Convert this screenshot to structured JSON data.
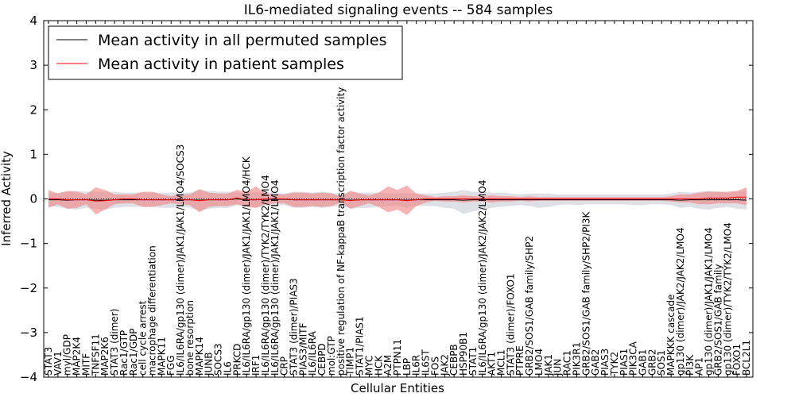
{
  "chart_data": {
    "type": "line",
    "title": "IL6-mediated signaling events -- 584 samples",
    "xlabel": "Cellular Entities",
    "ylabel": "Inferred Activity",
    "ylim": [
      -4,
      4
    ],
    "yticks": [
      -4,
      -3,
      -2,
      -1,
      0,
      1,
      2,
      3,
      4
    ],
    "ytick_labels": [
      "−4",
      "−3",
      "−2",
      "−1",
      "0",
      "1",
      "2",
      "3",
      "4"
    ],
    "categories": [
      "STAT3",
      "VAV1",
      "myl/GDP",
      "MAP2K4",
      "MITF",
      "TNFSF11",
      "MAP2K6",
      "STAT3 (dimer)",
      "Rac1/GTP",
      "Rac1/GDP",
      "cell cycle arrest",
      "macrophage differentiation",
      "MAPK11",
      "FGG",
      "IL6/IL6RA/gp130 (dimer)/JAK1/JAK1/LMO4/SOCS3",
      "bone resorption",
      "MAPK14",
      "JUNB",
      "SOCS3",
      "IL6",
      "PRKCD",
      "IL6/IL6RA/gp130 (dimer)/JAK1/JAK1/LMO4/HCK",
      "IRF1",
      "IL6/IL6RA/gp130 (dimer)/TYK2/TYK2/LMO4",
      "IL6/IL6RA/gp130 (dimer)/JAK1/JAK1/LMO4",
      "CRP",
      "STAT3 (dimer)/PIAS3",
      "PIAS3/MITF",
      "IL6/IL6RA",
      "CEBPD",
      "mol:GTP",
      "positive regulation of NF-kappaB transcription factor activity",
      "TIMP1",
      "STAT1/PIAS1",
      "MYC",
      "HCK",
      "A2M",
      "PTPN11",
      "LBP",
      "IL6R",
      "IL6ST",
      "FOS",
      "JAK2",
      "CEBPB",
      "HSP90B1",
      "STAT1",
      "IL6/IL6RA/gp130 (dimer)/JAK2/JAK2/LMO4",
      "AKT1",
      "MCL1",
      "STAT3 (dimer)/FOXO1",
      "PTPRE",
      "GRB2/SOS1/GAB family/SHP2",
      "LMO4",
      "JAK1",
      "JUN",
      "RAC1",
      "PIK3R1",
      "GRB2/SOS1/GAB family/SHP2/PI3K",
      "GAB2",
      "PIAS3",
      "TYK2",
      "PIAS1",
      "PIK3CA",
      "GAB1",
      "GRB2",
      "SOS1",
      "MAPKKK cascade",
      "gp130 (dimer)/JAK2/JAK2/LMO4",
      "PI3K",
      "AP1",
      "gp130 (dimer)/JAK1/JAK1/LMO4",
      "GRB2/SOS1/GAB family",
      "gp130 (dimer)/TYK2/TYK2/LMO4",
      "FOXO1",
      "BCL2L1"
    ],
    "series": [
      {
        "name": "Mean activity in all permuted samples",
        "color": "#000000",
        "band_color": "#c8cbd6",
        "values": [
          -0.02,
          -0.02,
          -0.03,
          -0.02,
          -0.02,
          -0.03,
          -0.03,
          -0.02,
          -0.02,
          -0.02,
          -0.02,
          -0.02,
          -0.02,
          -0.02,
          -0.02,
          -0.02,
          -0.03,
          -0.02,
          -0.02,
          -0.02,
          0.0,
          -0.02,
          -0.02,
          -0.01,
          -0.01,
          -0.01,
          -0.02,
          -0.02,
          -0.02,
          -0.02,
          -0.02,
          -0.02,
          -0.03,
          -0.02,
          -0.02,
          -0.02,
          -0.02,
          -0.02,
          -0.03,
          -0.02,
          -0.02,
          -0.02,
          -0.02,
          -0.02,
          -0.03,
          -0.02,
          -0.02,
          -0.02,
          -0.02,
          -0.02,
          -0.02,
          -0.02,
          -0.02,
          -0.02,
          -0.02,
          -0.02,
          -0.02,
          -0.02,
          -0.02,
          -0.02,
          -0.02,
          -0.02,
          -0.02,
          -0.02,
          -0.02,
          -0.02,
          -0.02,
          -0.03,
          -0.02,
          -0.02,
          -0.02,
          -0.02,
          -0.02,
          -0.02,
          -0.03
        ],
        "lower": [
          -0.16,
          -0.18,
          -0.22,
          -0.24,
          -0.2,
          -0.22,
          -0.24,
          -0.2,
          -0.18,
          -0.18,
          -0.18,
          -0.18,
          -0.2,
          -0.2,
          -0.18,
          -0.2,
          -0.26,
          -0.22,
          -0.2,
          -0.2,
          -0.14,
          -0.18,
          -0.2,
          -0.16,
          -0.14,
          -0.14,
          -0.2,
          -0.2,
          -0.18,
          -0.2,
          -0.18,
          -0.14,
          -0.22,
          -0.2,
          -0.2,
          -0.18,
          -0.16,
          -0.16,
          -0.2,
          -0.16,
          -0.16,
          -0.16,
          -0.2,
          -0.22,
          -0.34,
          -0.28,
          -0.24,
          -0.2,
          -0.18,
          -0.16,
          -0.14,
          -0.16,
          -0.2,
          -0.18,
          -0.14,
          -0.12,
          -0.14,
          -0.12,
          -0.12,
          -0.12,
          -0.12,
          -0.12,
          -0.14,
          -0.14,
          -0.12,
          -0.12,
          -0.14,
          -0.2,
          -0.18,
          -0.22,
          -0.24,
          -0.2,
          -0.18,
          -0.22,
          -0.24
        ],
        "upper": [
          0.12,
          0.14,
          0.16,
          0.18,
          0.16,
          0.16,
          0.16,
          0.16,
          0.14,
          0.14,
          0.14,
          0.14,
          0.14,
          0.14,
          0.14,
          0.14,
          0.2,
          0.18,
          0.16,
          0.16,
          0.14,
          0.14,
          0.16,
          0.14,
          0.14,
          0.12,
          0.16,
          0.16,
          0.14,
          0.16,
          0.14,
          0.1,
          0.16,
          0.14,
          0.14,
          0.14,
          0.12,
          0.12,
          0.14,
          0.12,
          0.12,
          0.12,
          0.14,
          0.16,
          0.2,
          0.16,
          0.16,
          0.14,
          0.14,
          0.12,
          0.1,
          0.12,
          0.12,
          0.12,
          0.1,
          0.1,
          0.1,
          0.1,
          0.1,
          0.1,
          0.1,
          0.1,
          0.1,
          0.1,
          0.1,
          0.1,
          0.12,
          0.16,
          0.14,
          0.16,
          0.18,
          0.16,
          0.14,
          0.16,
          0.18
        ]
      },
      {
        "name": "Mean activity in patient samples",
        "color": "#ff0000",
        "band_color": "#f08080",
        "values": [
          0.0,
          0.0,
          -0.02,
          -0.02,
          -0.02,
          -0.05,
          -0.04,
          -0.02,
          0.0,
          0.0,
          -0.02,
          -0.02,
          -0.02,
          -0.02,
          -0.02,
          -0.02,
          -0.04,
          -0.02,
          -0.02,
          -0.02,
          0.02,
          -0.02,
          -0.02,
          0.0,
          0.0,
          0.0,
          -0.02,
          -0.02,
          -0.02,
          -0.02,
          -0.02,
          -0.02,
          -0.04,
          -0.02,
          -0.02,
          -0.02,
          -0.02,
          -0.02,
          -0.04,
          -0.02,
          0.0,
          0.0,
          0.0,
          0.0,
          0.0,
          0.0,
          0.0,
          0.0,
          0.0,
          0.0,
          0.0,
          0.0,
          0.0,
          0.0,
          0.0,
          0.0,
          0.0,
          0.0,
          0.0,
          0.0,
          0.0,
          0.0,
          0.0,
          0.0,
          0.0,
          0.0,
          0.0,
          0.0,
          0.0,
          0.0,
          0.02,
          0.02,
          0.02,
          0.04,
          0.04
        ],
        "lower": [
          -0.2,
          -0.12,
          -0.22,
          -0.2,
          -0.12,
          -0.35,
          -0.24,
          -0.12,
          -0.1,
          -0.1,
          -0.18,
          -0.18,
          -0.14,
          -0.1,
          -0.12,
          -0.14,
          -0.3,
          -0.18,
          -0.16,
          -0.16,
          -0.12,
          -0.18,
          -0.2,
          -0.12,
          -0.1,
          -0.1,
          -0.18,
          -0.18,
          -0.16,
          -0.18,
          -0.16,
          -0.08,
          -0.22,
          -0.16,
          -0.1,
          -0.18,
          -0.3,
          -0.24,
          -0.36,
          -0.16,
          -0.08,
          -0.04,
          -0.06,
          -0.06,
          -0.08,
          -0.06,
          -0.06,
          -0.08,
          -0.06,
          -0.06,
          -0.04,
          -0.06,
          -0.04,
          -0.04,
          -0.04,
          -0.04,
          -0.04,
          -0.04,
          -0.04,
          -0.04,
          -0.04,
          -0.04,
          -0.04,
          -0.04,
          -0.04,
          -0.04,
          -0.06,
          -0.08,
          -0.08,
          -0.12,
          -0.12,
          -0.1,
          -0.1,
          -0.1,
          -0.14
        ],
        "upper": [
          0.2,
          0.12,
          0.18,
          0.16,
          0.1,
          0.26,
          0.2,
          0.1,
          0.1,
          0.1,
          0.16,
          0.16,
          0.1,
          0.06,
          0.1,
          0.1,
          0.22,
          0.14,
          0.12,
          0.12,
          0.2,
          0.16,
          0.28,
          0.12,
          0.1,
          0.1,
          0.14,
          0.14,
          0.12,
          0.14,
          0.12,
          0.06,
          0.18,
          0.12,
          0.08,
          0.14,
          0.28,
          0.2,
          0.3,
          0.12,
          0.08,
          0.04,
          0.06,
          0.06,
          0.08,
          0.06,
          0.06,
          0.08,
          0.06,
          0.06,
          0.04,
          0.06,
          0.04,
          0.04,
          0.04,
          0.04,
          0.04,
          0.04,
          0.04,
          0.04,
          0.04,
          0.04,
          0.04,
          0.04,
          0.04,
          0.04,
          0.06,
          0.1,
          0.1,
          0.14,
          0.16,
          0.16,
          0.16,
          0.18,
          0.26
        ]
      }
    ],
    "legend": {
      "placement": "top-left"
    }
  }
}
